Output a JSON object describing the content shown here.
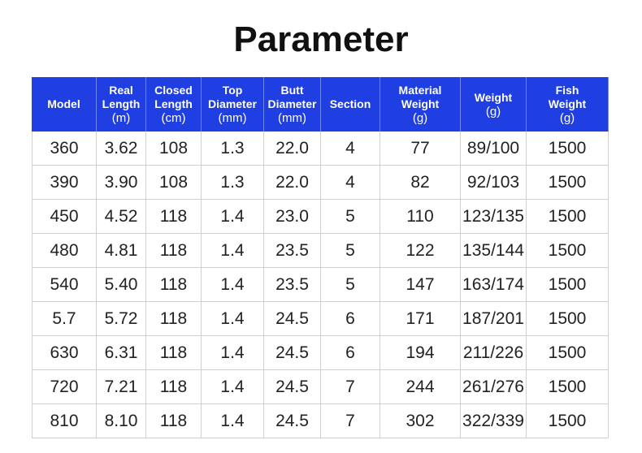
{
  "title": "Parameter",
  "table": {
    "columns": [
      [
        "Model"
      ],
      [
        "Real",
        "Length",
        "(m)"
      ],
      [
        "Closed",
        "Length",
        "(cm)"
      ],
      [
        "Top",
        "Diameter",
        "(mm)"
      ],
      [
        "Butt",
        "Diameter",
        "(mm)"
      ],
      [
        "Section"
      ],
      [
        "Material",
        "Weight",
        "(g)"
      ],
      [
        "Weight",
        "(g)"
      ],
      [
        "Fish",
        "Weight",
        "(g)"
      ]
    ],
    "rows": [
      [
        "360",
        "3.62",
        "108",
        "1.3",
        "22.0",
        "4",
        "77",
        "89/100",
        "1500"
      ],
      [
        "390",
        "3.90",
        "108",
        "1.3",
        "22.0",
        "4",
        "82",
        "92/103",
        "1500"
      ],
      [
        "450",
        "4.52",
        "118",
        "1.4",
        "23.0",
        "5",
        "110",
        "123/135",
        "1500"
      ],
      [
        "480",
        "4.81",
        "118",
        "1.4",
        "23.5",
        "5",
        "122",
        "135/144",
        "1500"
      ],
      [
        "540",
        "5.40",
        "118",
        "1.4",
        "23.5",
        "5",
        "147",
        "163/174",
        "1500"
      ],
      [
        "5.7",
        "5.72",
        "118",
        "1.4",
        "24.5",
        "6",
        "171",
        "187/201",
        "1500"
      ],
      [
        "630",
        "6.31",
        "118",
        "1.4",
        "24.5",
        "6",
        "194",
        "211/226",
        "1500"
      ],
      [
        "720",
        "7.21",
        "118",
        "1.4",
        "24.5",
        "7",
        "244",
        "261/276",
        "1500"
      ],
      [
        "810",
        "8.10",
        "118",
        "1.4",
        "24.5",
        "7",
        "302",
        "322/339",
        "1500"
      ]
    ]
  }
}
